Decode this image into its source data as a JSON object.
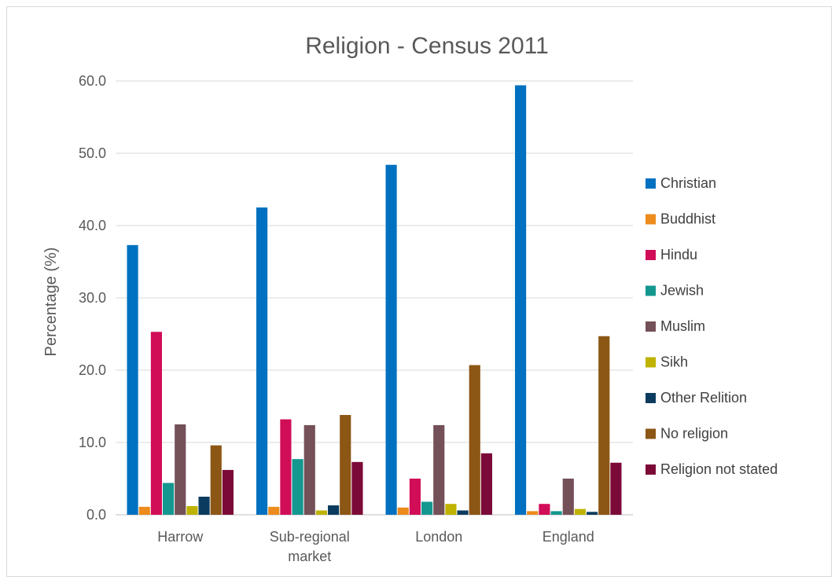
{
  "chart_data": {
    "type": "bar",
    "title": "Religion - Census 2011",
    "xlabel": "",
    "ylabel": "Percentage (%)",
    "ylim": [
      0,
      60
    ],
    "y_ticks": [
      "0.0",
      "10.0",
      "20.0",
      "30.0",
      "40.0",
      "50.0",
      "60.0"
    ],
    "grid": true,
    "legend_position": "right",
    "categories": [
      "Harrow",
      "Sub-regional market",
      "London",
      "England"
    ],
    "category_lines": [
      [
        "Harrow"
      ],
      [
        "Sub-regional",
        "market"
      ],
      [
        "London"
      ],
      [
        "England"
      ]
    ],
    "series": [
      {
        "name": "Christian",
        "color": "#0070c0",
        "values": [
          37.3,
          42.5,
          48.4,
          59.4
        ]
      },
      {
        "name": "Buddhist",
        "color": "#ed8b1c",
        "values": [
          1.1,
          1.1,
          1.0,
          0.5
        ]
      },
      {
        "name": "Hindu",
        "color": "#d10d58",
        "values": [
          25.3,
          13.2,
          5.0,
          1.5
        ]
      },
      {
        "name": "Jewish",
        "color": "#14978f",
        "values": [
          4.4,
          7.7,
          1.8,
          0.5
        ]
      },
      {
        "name": "Muslim",
        "color": "#745058",
        "values": [
          12.5,
          12.4,
          12.4,
          5.0
        ]
      },
      {
        "name": "Sikh",
        "color": "#bfb200",
        "values": [
          1.2,
          0.6,
          1.5,
          0.8
        ]
      },
      {
        "name": "Other Relition",
        "color": "#0b3c5f",
        "values": [
          2.5,
          1.3,
          0.6,
          0.4
        ]
      },
      {
        "name": "No religion",
        "color": "#8c5614",
        "values": [
          9.6,
          13.8,
          20.7,
          24.7
        ]
      },
      {
        "name": "Religion not stated",
        "color": "#7c0a38",
        "values": [
          6.2,
          7.3,
          8.5,
          7.2
        ]
      }
    ]
  }
}
